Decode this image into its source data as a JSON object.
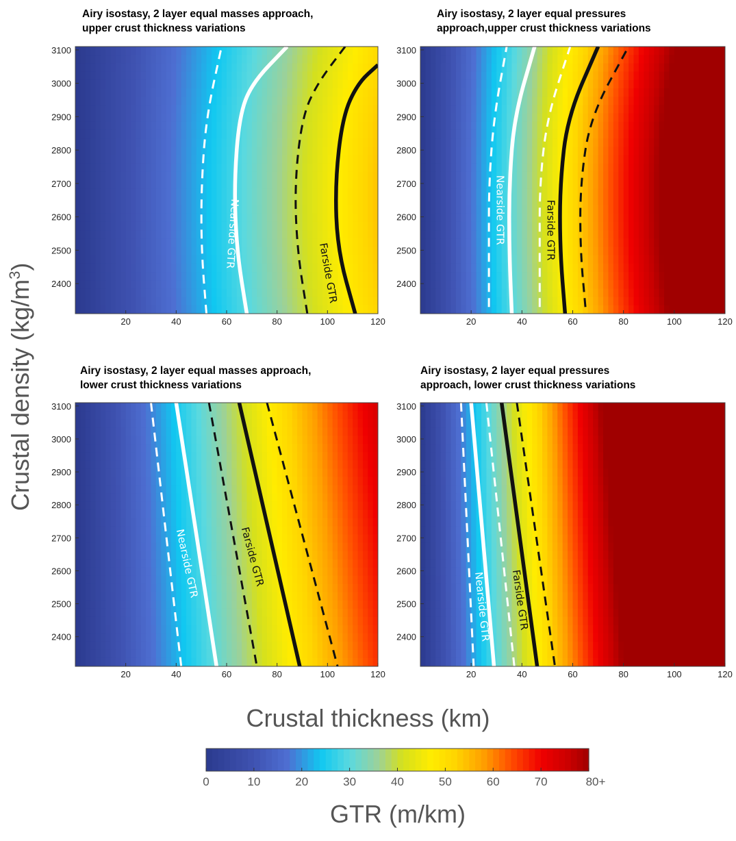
{
  "figure": {
    "ylabel_main": "Crustal density (kg/m",
    "ylabel_sup": "3",
    "ylabel_end": ")",
    "xlabel": "Crustal thickness (km)"
  },
  "chart_data": [
    {
      "type": "heatmap",
      "title": "Airy isostasy, 2 layer equal masses approach,\nupper crust thickness variations",
      "xlim": [
        0,
        120
      ],
      "ylim": [
        2310,
        3110
      ],
      "xticks": [
        20,
        40,
        60,
        80,
        100,
        120
      ],
      "yticks": [
        2400,
        2500,
        2600,
        2700,
        2800,
        2900,
        3000,
        3100
      ],
      "gtr_scale": 0.45,
      "curvature": 1,
      "contours": [
        {
          "style": "white-dashed",
          "points": [
            [
              52,
              2310
            ],
            [
              50,
              2500
            ],
            [
              50,
              2700
            ],
            [
              52,
              2900
            ],
            [
              58,
              3110
            ]
          ]
        },
        {
          "style": "white-solid",
          "points": [
            [
              68,
              2310
            ],
            [
              64,
              2500
            ],
            [
              63,
              2700
            ],
            [
              65,
              2900
            ],
            [
              70,
              3000
            ],
            [
              84,
              3110
            ]
          ]
        },
        {
          "style": "black-dashed",
          "points": [
            [
              92,
              2310
            ],
            [
              88,
              2500
            ],
            [
              87,
              2700
            ],
            [
              90,
              2900
            ],
            [
              96,
              3000
            ],
            [
              107,
              3110
            ]
          ]
        },
        {
          "style": "black-solid",
          "points": [
            [
              111,
              2310
            ],
            [
              104,
              2500
            ],
            [
              103,
              2700
            ],
            [
              106,
              2900
            ],
            [
              112,
              3000
            ],
            [
              120,
              3055
            ]
          ]
        }
      ],
      "curve_labels": [
        {
          "text": "Nearside GTR",
          "x": 61,
          "y": 2550,
          "angle": 94,
          "color": "#ffffff"
        },
        {
          "text": "Farside GTR",
          "x": 99,
          "y": 2430,
          "angle": 80,
          "color": "#111111"
        }
      ]
    },
    {
      "type": "heatmap",
      "title": "Airy isostasy, 2 layer equal pressures\napproach,upper crust thickness variations",
      "xlim": [
        0,
        120
      ],
      "ylim": [
        2310,
        3110
      ],
      "xticks": [
        20,
        40,
        60,
        80,
        100,
        120
      ],
      "yticks": [
        2400,
        2500,
        2600,
        2700,
        2800,
        2900,
        3000,
        3100
      ],
      "gtr_scale": 0.85,
      "curvature": 1,
      "contours": [
        {
          "style": "white-dashed",
          "points": [
            [
              27,
              2330
            ],
            [
              27,
              2500
            ],
            [
              27,
              2700
            ],
            [
              29,
              2900
            ],
            [
              34,
              3110
            ]
          ]
        },
        {
          "style": "white-solid",
          "points": [
            [
              36,
              2310
            ],
            [
              35,
              2500
            ],
            [
              35,
              2700
            ],
            [
              37,
              2900
            ],
            [
              45,
              3110
            ]
          ]
        },
        {
          "style": "white-dashed",
          "points": [
            [
              47,
              2330
            ],
            [
              47,
              2500
            ],
            [
              47,
              2700
            ],
            [
              50,
              2900
            ],
            [
              59,
              3110
            ]
          ]
        },
        {
          "style": "black-solid",
          "points": [
            [
              57,
              2310
            ],
            [
              55,
              2500
            ],
            [
              55,
              2700
            ],
            [
              58,
              2900
            ],
            [
              70,
              3110
            ]
          ]
        },
        {
          "style": "black-dashed",
          "points": [
            [
              65,
              2330
            ],
            [
              63,
              2500
            ],
            [
              63,
              2700
            ],
            [
              67,
              2900
            ],
            [
              82,
              3110
            ]
          ]
        }
      ],
      "curve_labels": [
        {
          "text": "Nearside GTR",
          "x": 30,
          "y": 2620,
          "angle": 90,
          "color": "#ffffff"
        },
        {
          "text": "Farside GTR",
          "x": 50,
          "y": 2560,
          "angle": 90,
          "color": "#111111"
        }
      ]
    },
    {
      "type": "heatmap",
      "title": "Airy isostasy, 2 layer equal masses approach,\nlower crust thickness variations",
      "xlim": [
        0,
        120
      ],
      "ylim": [
        2310,
        3110
      ],
      "xticks": [
        20,
        40,
        60,
        80,
        100,
        120
      ],
      "yticks": [
        2400,
        2500,
        2600,
        2700,
        2800,
        2900,
        3000,
        3100
      ],
      "gtr_scale": 0.55,
      "curvature": 0,
      "contours": [
        {
          "style": "white-dashed",
          "points": [
            [
              30,
              3110
            ],
            [
              42,
              2310
            ]
          ]
        },
        {
          "style": "white-solid",
          "points": [
            [
              40,
              3110
            ],
            [
              56,
              2310
            ]
          ]
        },
        {
          "style": "black-dashed",
          "points": [
            [
              53,
              3110
            ],
            [
              72,
              2310
            ]
          ]
        },
        {
          "style": "black-solid",
          "points": [
            [
              65,
              3110
            ],
            [
              89,
              2310
            ]
          ]
        },
        {
          "style": "black-dashed",
          "points": [
            [
              76,
              3110
            ],
            [
              104,
              2310
            ]
          ]
        }
      ],
      "curve_labels": [
        {
          "text": "Nearside GTR",
          "x": 43,
          "y": 2620,
          "angle": 78,
          "color": "#ffffff"
        },
        {
          "text": "Farside GTR",
          "x": 69,
          "y": 2640,
          "angle": 75,
          "color": "#111111"
        }
      ]
    },
    {
      "type": "heatmap",
      "title": "Airy isostasy, 2 layer equal pressures\napproach, lower crust thickness variations",
      "xlim": [
        0,
        120
      ],
      "ylim": [
        2310,
        3110
      ],
      "xticks": [
        20,
        40,
        60,
        80,
        100,
        120
      ],
      "yticks": [
        2400,
        2500,
        2600,
        2700,
        2800,
        2900,
        3000,
        3100
      ],
      "gtr_scale": 1.0,
      "curvature": 0,
      "contours": [
        {
          "style": "white-dashed",
          "points": [
            [
              16,
              3110
            ],
            [
              21,
              2310
            ]
          ]
        },
        {
          "style": "white-solid",
          "points": [
            [
              20,
              3110
            ],
            [
              29,
              2310
            ]
          ]
        },
        {
          "style": "white-dashed",
          "points": [
            [
              26,
              3110
            ],
            [
              37,
              2310
            ]
          ]
        },
        {
          "style": "black-solid",
          "points": [
            [
              32,
              3110
            ],
            [
              46,
              2310
            ]
          ]
        },
        {
          "style": "black-dashed",
          "points": [
            [
              38,
              3110
            ],
            [
              53,
              2310
            ]
          ]
        }
      ],
      "curve_labels": [
        {
          "text": "Nearside GTR",
          "x": 23,
          "y": 2490,
          "angle": 84,
          "color": "#ffffff"
        },
        {
          "text": "Farside GTR",
          "x": 38,
          "y": 2510,
          "angle": 82,
          "color": "#111111"
        }
      ]
    }
  ],
  "colorbar": {
    "label": "GTR (m/km)",
    "min": 0,
    "max": 80,
    "ticks": [
      "0",
      "10",
      "20",
      "30",
      "40",
      "50",
      "60",
      "70",
      "80+"
    ],
    "stops": [
      [
        0,
        "#2b3a8e"
      ],
      [
        10,
        "#3f52b1"
      ],
      [
        17,
        "#4e6fd2"
      ],
      [
        24,
        "#10c8f1"
      ],
      [
        30,
        "#5ad9df"
      ],
      [
        36,
        "#9cd199"
      ],
      [
        41,
        "#d4e01e"
      ],
      [
        47,
        "#ffec00"
      ],
      [
        52,
        "#ffd500"
      ],
      [
        58,
        "#ff9f00"
      ],
      [
        64,
        "#ff4a00"
      ],
      [
        70,
        "#f00000"
      ],
      [
        76,
        "#c80000"
      ],
      [
        80,
        "#a00000"
      ]
    ]
  }
}
